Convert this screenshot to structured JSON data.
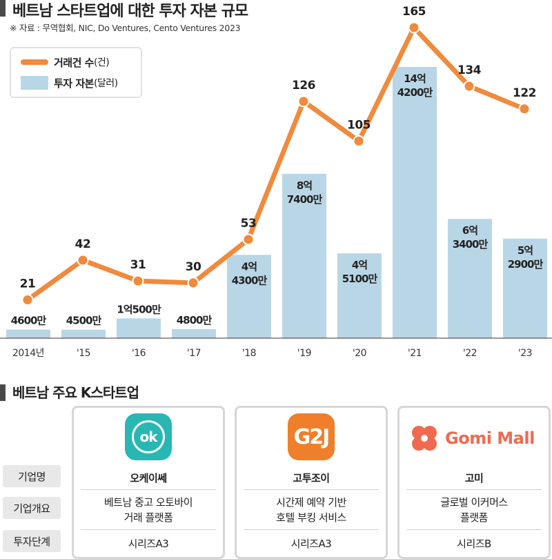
{
  "title": "베트남 스타트업에 대한 투자 자본 규모",
  "source": "※ 자료 : 무역협회, NIC, Do Ventures, Cento Ventures 2023",
  "legend": {
    "deals_label": "거래건 수",
    "deals_unit": "(건)",
    "capital_label": "투자 자본",
    "capital_unit": "(달러)"
  },
  "chart_data": {
    "type": "bar",
    "categories": [
      "2014년",
      "'15",
      "'16",
      "'17",
      "'18",
      "'19",
      "'20",
      "'21",
      "'22",
      "'23"
    ],
    "series": [
      {
        "name": "투자 자본(달러)",
        "type": "bar",
        "color": "#b9d6e6",
        "values": [
          46000000,
          45000000,
          105000000,
          48000000,
          443000000,
          874000000,
          451000000,
          1442000000,
          634000000,
          529000000
        ],
        "labels": [
          "4600만",
          "4500만",
          "1억500만",
          "4800만",
          "4억\n4300만",
          "8억\n7400만",
          "4억\n5100만",
          "14억\n4200만",
          "6억\n3400만",
          "5억\n2900만"
        ]
      },
      {
        "name": "거래건 수(건)",
        "type": "line",
        "color": "#f08a3c",
        "values": [
          21,
          42,
          31,
          30,
          53,
          126,
          105,
          165,
          134,
          122
        ]
      }
    ]
  },
  "section_title": "베트남 주요 K스타트업",
  "row_labels": {
    "name": "기업명",
    "overview": "기업개요",
    "stage": "투자단계"
  },
  "companies": [
    {
      "logo_text": "ok",
      "name": "오케이쎄",
      "desc_line1": "베트남 중고 오토바이",
      "desc_line2": "거래 플랫폼",
      "stage": "시리즈A3",
      "color": "#29b7b3"
    },
    {
      "logo_text": "G2J",
      "name": "고투조이",
      "desc_line1": "시간제 예약 기반",
      "desc_line2": "호텔 부킹 서비스",
      "stage": "시리즈A3",
      "color": "#ef7f2a"
    },
    {
      "logo_text": "Gomi Mall",
      "name": "고미",
      "desc_line1": "글로벌 이커머스",
      "desc_line2": "플랫폼",
      "stage": "시리즈B",
      "color": "#ef6a4f"
    }
  ]
}
